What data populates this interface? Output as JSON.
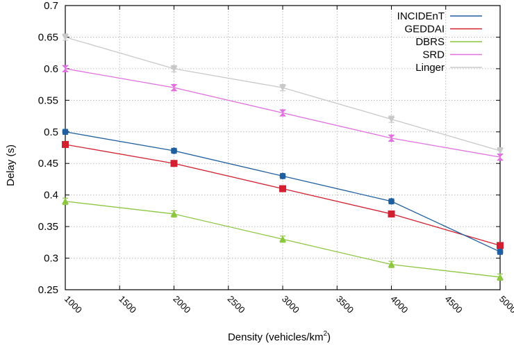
{
  "chart_data": {
    "type": "line",
    "title": "",
    "xlabel": "Density (vehicles/km",
    "xlabel_sup": "2",
    "xlabel_end": ")",
    "ylabel": "Delay (s)",
    "xlim": [
      1000,
      5000
    ],
    "ylim": [
      0.25,
      0.7
    ],
    "x_ticks": [
      1000,
      1500,
      2000,
      2500,
      3000,
      3500,
      4000,
      4500,
      5000
    ],
    "y_ticks": [
      0.25,
      0.3,
      0.35,
      0.4,
      0.45,
      0.5,
      0.55,
      0.6,
      0.65,
      0.7
    ],
    "grid": "dotted",
    "legend_position": "top-right",
    "x": [
      1000,
      2000,
      3000,
      4000,
      5000
    ],
    "series": [
      {
        "name": "INCIDEnT",
        "color": "#1f5f9f",
        "marker": "hexagon",
        "values": [
          0.5,
          0.47,
          0.43,
          0.39,
          0.31
        ],
        "err": [
          0.004,
          0.004,
          0.004,
          0.004,
          0.004
        ]
      },
      {
        "name": "GEDDAI",
        "color": "#d22030",
        "marker": "square",
        "values": [
          0.48,
          0.45,
          0.41,
          0.37,
          0.32
        ],
        "err": [
          0.003,
          0.003,
          0.003,
          0.003,
          0.003
        ]
      },
      {
        "name": "DBRS",
        "color": "#8cc63f",
        "marker": "triangle",
        "values": [
          0.39,
          0.37,
          0.33,
          0.29,
          0.27
        ],
        "err": [
          0.005,
          0.005,
          0.005,
          0.005,
          0.005
        ]
      },
      {
        "name": "SRD",
        "color": "#e070e0",
        "marker": "hourglass",
        "values": [
          0.6,
          0.57,
          0.53,
          0.49,
          0.46
        ],
        "err": [
          0.005,
          0.005,
          0.005,
          0.005,
          0.005
        ]
      },
      {
        "name": "Linger",
        "color": "#c8c8c8",
        "marker": "triangle-down",
        "values": [
          0.65,
          0.6,
          0.57,
          0.52,
          0.47
        ],
        "err": [
          0.005,
          0.005,
          0.005,
          0.005,
          0.005
        ]
      }
    ]
  }
}
